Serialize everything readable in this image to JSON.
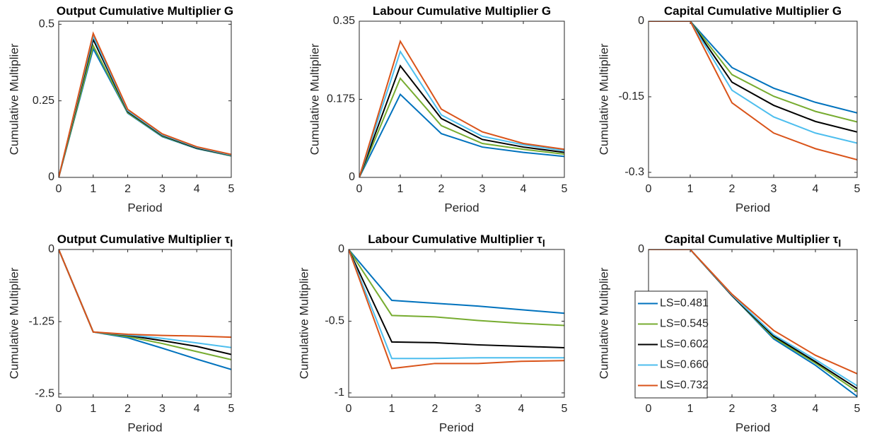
{
  "chart_data": [
    {
      "type": "line",
      "title": "Output Cumulative Multiplier G",
      "xlabel": "Period",
      "ylabel": "Cumulative Multiplier",
      "x": [
        0,
        1,
        2,
        3,
        4,
        5
      ],
      "xlim": [
        0,
        5
      ],
      "xticks": [
        0,
        1,
        2,
        3,
        4,
        5
      ],
      "ylim": [
        0,
        0.51
      ],
      "yticks": [
        0,
        0.25,
        0.5
      ],
      "series": [
        {
          "color": "#0072BD",
          "values": [
            0,
            0.42,
            0.21,
            0.133,
            0.094,
            0.07
          ]
        },
        {
          "color": "#77AC30",
          "values": [
            0,
            0.43,
            0.212,
            0.135,
            0.095,
            0.071
          ]
        },
        {
          "color": "#000000",
          "values": [
            0,
            0.45,
            0.215,
            0.137,
            0.096,
            0.072
          ]
        },
        {
          "color": "#4DBEEE",
          "values": [
            0,
            0.46,
            0.218,
            0.139,
            0.098,
            0.073
          ]
        },
        {
          "color": "#D95319",
          "values": [
            0,
            0.47,
            0.222,
            0.142,
            0.1,
            0.075
          ]
        }
      ]
    },
    {
      "type": "line",
      "title": "Labour Cumulative Multiplier G",
      "xlabel": "Period",
      "ylabel": "Cumulative Multiplier",
      "x": [
        0,
        1,
        2,
        3,
        4,
        5
      ],
      "xlim": [
        0,
        5
      ],
      "xticks": [
        0,
        1,
        2,
        3,
        4,
        5
      ],
      "ylim": [
        0,
        0.35
      ],
      "yticks": [
        0,
        0.175,
        0.35
      ],
      "series": [
        {
          "color": "#0072BD",
          "values": [
            0,
            0.186,
            0.098,
            0.068,
            0.056,
            0.047
          ]
        },
        {
          "color": "#77AC30",
          "values": [
            0,
            0.222,
            0.116,
            0.076,
            0.063,
            0.052
          ]
        },
        {
          "color": "#000000",
          "values": [
            0,
            0.25,
            0.132,
            0.085,
            0.068,
            0.056
          ]
        },
        {
          "color": "#4DBEEE",
          "values": [
            0,
            0.282,
            0.14,
            0.092,
            0.073,
            0.06
          ]
        },
        {
          "color": "#D95319",
          "values": [
            0,
            0.305,
            0.153,
            0.102,
            0.076,
            0.063
          ]
        }
      ]
    },
    {
      "type": "line",
      "title": "Capital Cumulative Multiplier G",
      "xlabel": "Period",
      "ylabel": "Cumulative Multiplier",
      "x": [
        0,
        1,
        2,
        3,
        4,
        5
      ],
      "xlim": [
        0,
        5
      ],
      "xticks": [
        0,
        1,
        2,
        3,
        4,
        5
      ],
      "ylim": [
        -0.31,
        0
      ],
      "yticks": [
        -0.3,
        -0.15,
        0
      ],
      "series": [
        {
          "color": "#0072BD",
          "values": [
            0,
            0,
            -0.092,
            -0.133,
            -0.161,
            -0.182
          ]
        },
        {
          "color": "#77AC30",
          "values": [
            0,
            0,
            -0.106,
            -0.149,
            -0.179,
            -0.2
          ]
        },
        {
          "color": "#000000",
          "values": [
            0,
            0,
            -0.121,
            -0.167,
            -0.199,
            -0.22
          ]
        },
        {
          "color": "#4DBEEE",
          "values": [
            0,
            0,
            -0.137,
            -0.19,
            -0.222,
            -0.242
          ]
        },
        {
          "color": "#D95319",
          "values": [
            0,
            0,
            -0.162,
            -0.222,
            -0.253,
            -0.275
          ]
        }
      ]
    },
    {
      "type": "line",
      "title": "Output Cumulative Multiplier τ",
      "title_subscript": "l",
      "xlabel": "Period",
      "ylabel": "Cumulative Multiplier",
      "x": [
        0,
        1,
        2,
        3,
        4,
        5
      ],
      "xlim": [
        0,
        5
      ],
      "xticks": [
        0,
        1,
        2,
        3,
        4,
        5
      ],
      "ylim": [
        -2.56,
        0
      ],
      "yticks": [
        -2.5,
        -1.25,
        0
      ],
      "series": [
        {
          "color": "#0072BD",
          "values": [
            0,
            -1.43,
            -1.53,
            -1.71,
            -1.9,
            -2.08
          ]
        },
        {
          "color": "#77AC30",
          "values": [
            0,
            -1.43,
            -1.51,
            -1.63,
            -1.77,
            -1.91
          ]
        },
        {
          "color": "#000000",
          "values": [
            0,
            -1.43,
            -1.49,
            -1.58,
            -1.68,
            -1.82
          ]
        },
        {
          "color": "#4DBEEE",
          "values": [
            0,
            -1.43,
            -1.48,
            -1.54,
            -1.62,
            -1.7
          ]
        },
        {
          "color": "#D95319",
          "values": [
            0,
            -1.43,
            -1.47,
            -1.49,
            -1.5,
            -1.52
          ]
        }
      ]
    },
    {
      "type": "line",
      "title": "Labour Cumulative Multiplier τ",
      "title_subscript": "l",
      "xlabel": "Period",
      "ylabel": "Cumulative Multiplier",
      "x": [
        0,
        1,
        2,
        3,
        4,
        5
      ],
      "xlim": [
        0,
        5
      ],
      "xticks": [
        0,
        1,
        2,
        3,
        4,
        5
      ],
      "ylim": [
        -1.03,
        0
      ],
      "yticks": [
        -1,
        -0.5,
        0
      ],
      "series": [
        {
          "color": "#0072BD",
          "values": [
            0,
            -0.355,
            -0.375,
            -0.395,
            -0.42,
            -0.445
          ]
        },
        {
          "color": "#77AC30",
          "values": [
            0,
            -0.46,
            -0.47,
            -0.495,
            -0.515,
            -0.53
          ]
        },
        {
          "color": "#000000",
          "values": [
            0,
            -0.645,
            -0.65,
            -0.665,
            -0.675,
            -0.685
          ]
        },
        {
          "color": "#4DBEEE",
          "values": [
            0,
            -0.76,
            -0.76,
            -0.755,
            -0.755,
            -0.755
          ]
        },
        {
          "color": "#D95319",
          "values": [
            0,
            -0.83,
            -0.795,
            -0.795,
            -0.78,
            -0.775
          ]
        }
      ]
    },
    {
      "type": "line",
      "title": "Capital Cumulative Multiplier τ",
      "title_subscript": "l",
      "xlabel": "Period",
      "ylabel": "Cumulative Multiplier",
      "x": [
        0,
        1,
        2,
        3,
        4,
        5
      ],
      "xlim": [
        0,
        5
      ],
      "xticks": [
        0,
        1,
        2,
        3,
        4,
        5
      ],
      "ylim": [
        -2.08,
        0
      ],
      "yticks": [
        -2,
        -1,
        0
      ],
      "legend": "west",
      "series": [
        {
          "name": "LS=0.481",
          "color": "#0072BD",
          "values": [
            0,
            0,
            -0.65,
            -1.26,
            -1.63,
            -2.07
          ]
        },
        {
          "name": "LS=0.545",
          "color": "#77AC30",
          "values": [
            0,
            0,
            -0.65,
            -1.24,
            -1.6,
            -2.0
          ]
        },
        {
          "name": "LS=0.602",
          "color": "#000000",
          "values": [
            0,
            0,
            -0.65,
            -1.22,
            -1.58,
            -1.96
          ]
        },
        {
          "name": "LS=0.660",
          "color": "#4DBEEE",
          "values": [
            0,
            0,
            -0.64,
            -1.2,
            -1.55,
            -1.92
          ]
        },
        {
          "name": "LS=0.732",
          "color": "#D95319",
          "values": [
            0,
            0,
            -0.63,
            -1.14,
            -1.49,
            -1.75
          ]
        }
      ]
    }
  ]
}
